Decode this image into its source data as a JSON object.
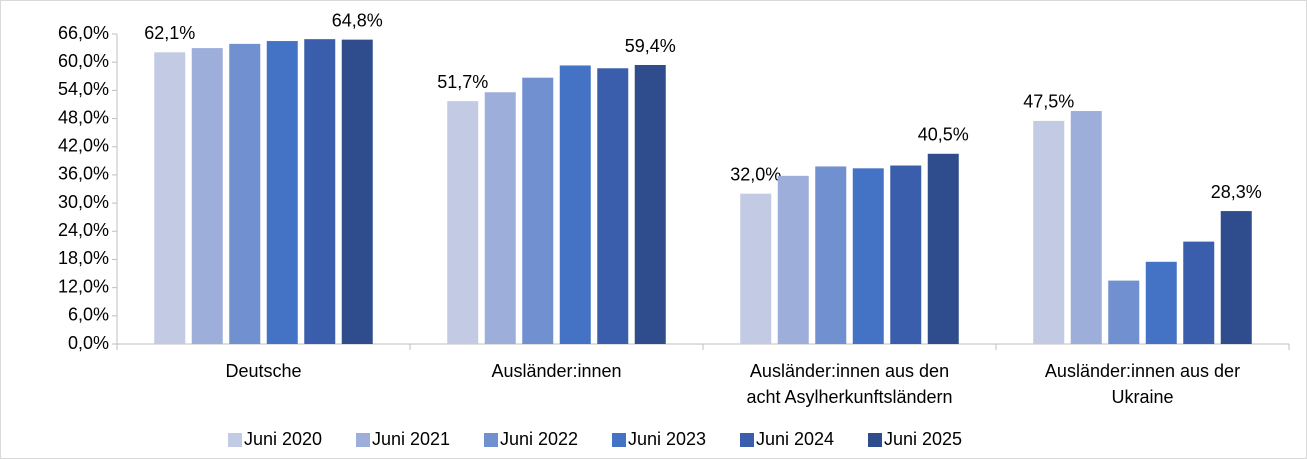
{
  "chart_data": {
    "type": "bar",
    "categories": [
      "Deutsche",
      "Ausländer:innen",
      "Ausländer:innen aus den\nacht Asylherkunftsländern",
      "Ausländer:innen aus der\nUkraine"
    ],
    "series": [
      {
        "name": "Juni 2020",
        "color": "#c2cae4",
        "values": [
          62.1,
          51.7,
          32.0,
          47.5
        ],
        "value_labels": [
          "62,1%",
          "51,7%",
          "32,0%",
          "47,5%"
        ]
      },
      {
        "name": "Juni 2021",
        "color": "#9eaedb",
        "values": [
          63.0,
          53.6,
          35.8,
          49.6
        ]
      },
      {
        "name": "Juni 2022",
        "color": "#7190d0",
        "values": [
          63.9,
          56.7,
          37.8,
          13.5
        ]
      },
      {
        "name": "Juni 2023",
        "color": "#4472c4",
        "values": [
          64.5,
          59.3,
          37.4,
          17.5
        ]
      },
      {
        "name": "Juni 2024",
        "color": "#3a5eab",
        "values": [
          64.9,
          58.7,
          38.0,
          21.8
        ]
      },
      {
        "name": "Juni 2025",
        "color": "#2f4d8c",
        "values": [
          64.8,
          59.4,
          40.5,
          28.3
        ],
        "value_labels": [
          "64,8%",
          "59,4%",
          "40,5%",
          "28,3%"
        ]
      }
    ],
    "ylim": [
      0,
      66
    ],
    "yticks": [
      {
        "value": 0,
        "label": "0,0%"
      },
      {
        "value": 6,
        "label": "6,0%"
      },
      {
        "value": 12,
        "label": "12,0%"
      },
      {
        "value": 18,
        "label": "18,0%"
      },
      {
        "value": 24,
        "label": "24,0%"
      },
      {
        "value": 30,
        "label": "30,0%"
      },
      {
        "value": 36,
        "label": "36,0%"
      },
      {
        "value": 42,
        "label": "42,0%"
      },
      {
        "value": 48,
        "label": "48,0%"
      },
      {
        "value": 54,
        "label": "54,0%"
      },
      {
        "value": 60,
        "label": "60,0%"
      },
      {
        "value": 66,
        "label": "66,0%"
      }
    ],
    "legend": "bottom"
  }
}
